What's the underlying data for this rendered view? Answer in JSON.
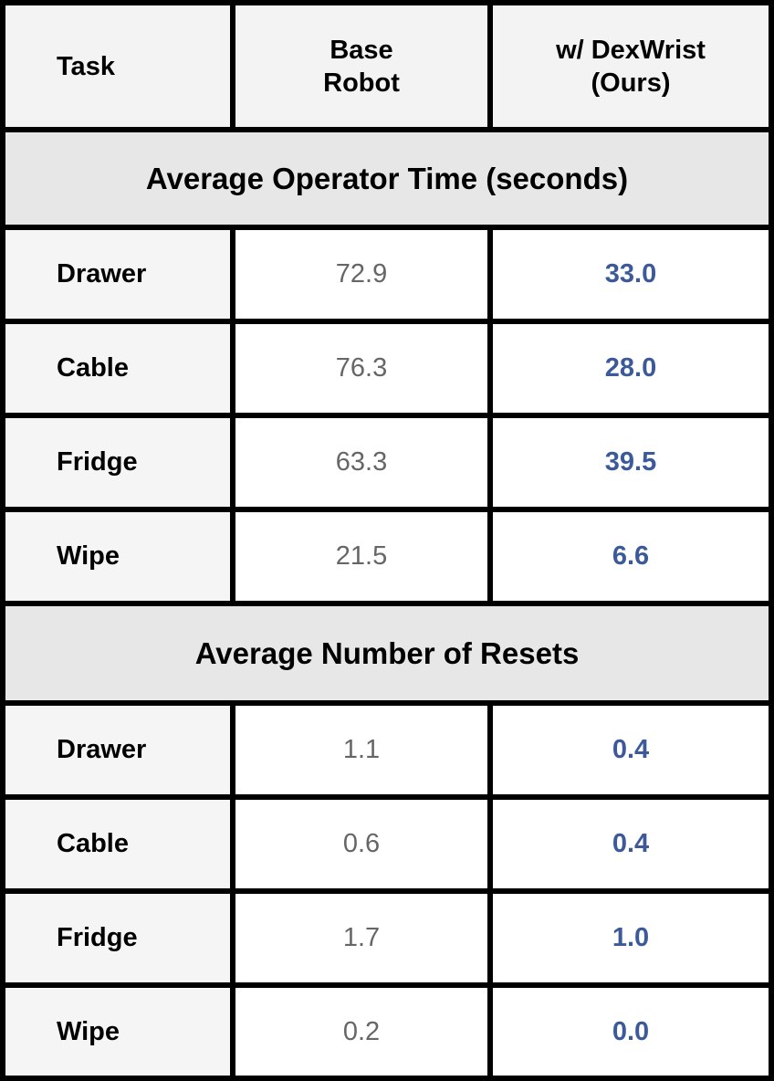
{
  "header": {
    "task": "Task",
    "base_line1": "Base",
    "base_line2": "Robot",
    "ours_line1": "w/ DexWrist",
    "ours_line2": "(Ours)"
  },
  "sections": [
    {
      "title": "Average Operator Time (seconds)",
      "rows": [
        {
          "task": "Drawer",
          "base": "72.9",
          "ours": "33.0"
        },
        {
          "task": "Cable",
          "base": "76.3",
          "ours": "28.0"
        },
        {
          "task": "Fridge",
          "base": "63.3",
          "ours": "39.5"
        },
        {
          "task": "Wipe",
          "base": "21.5",
          "ours": "6.6"
        }
      ]
    },
    {
      "title": "Average Number of Resets",
      "rows": [
        {
          "task": "Drawer",
          "base": "1.1",
          "ours": "0.4"
        },
        {
          "task": "Cable",
          "base": "0.6",
          "ours": "0.4"
        },
        {
          "task": "Fridge",
          "base": "1.7",
          "ours": "1.0"
        },
        {
          "task": "Wipe",
          "base": "0.2",
          "ours": "0.0"
        }
      ]
    }
  ],
  "colors": {
    "grid": "#000000",
    "base_text": "#666666",
    "ours_text": "#3c5a99"
  }
}
